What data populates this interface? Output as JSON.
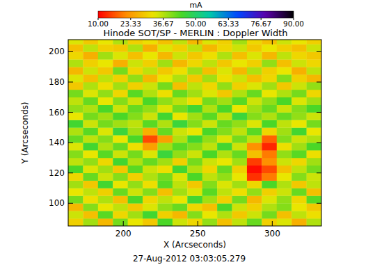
{
  "chart_data": {
    "type": "heatmap",
    "title": "Hinode SOT/SP - MERLIN : Doppler Width",
    "x_label": "X (Arcseconds)",
    "y_label": "Y (Arcseconds)",
    "annotations": [
      "27-Aug-2012 03:03:05.279"
    ],
    "xlim": [
      163,
      333
    ],
    "ylim": [
      85,
      208
    ],
    "xticks": [
      200,
      250,
      300
    ],
    "yticks": [
      100,
      120,
      140,
      160,
      180,
      200
    ],
    "colorbar": {
      "label": "mA",
      "range": [
        10,
        90
      ],
      "ticks": [
        {
          "value": 10,
          "label": "10.00"
        },
        {
          "value": 23.33,
          "label": "23.33"
        },
        {
          "value": 36.67,
          "label": "36.67"
        },
        {
          "value": 50,
          "label": "50.00"
        },
        {
          "value": 63.33,
          "label": "63.33"
        },
        {
          "value": 76.67,
          "label": "76.67"
        },
        {
          "value": 90,
          "label": "90.00"
        }
      ]
    },
    "x": [
      168,
      178,
      188,
      198,
      208,
      218,
      228,
      238,
      248,
      258,
      268,
      278,
      288,
      298,
      308,
      318,
      328
    ],
    "y": [
      87.5,
      92.5,
      97.5,
      102.5,
      107.5,
      112.5,
      117.5,
      122.5,
      127.5,
      132.5,
      137.5,
      142.5,
      147.5,
      152.5,
      157.5,
      162.5,
      167.5,
      172.5,
      177.5,
      182.5,
      187.5,
      192.5,
      197.5,
      202.5,
      207.5
    ],
    "values": [
      [
        30,
        38,
        27,
        41,
        33,
        29,
        44,
        35,
        31,
        39,
        28,
        36,
        42,
        30,
        34,
        26,
        37
      ],
      [
        35,
        28,
        43,
        31,
        38,
        45,
        30,
        27,
        40,
        33,
        37,
        29,
        35,
        41,
        28,
        36,
        32
      ],
      [
        27,
        40,
        33,
        36,
        29,
        34,
        39,
        42,
        31,
        28,
        44,
        35,
        30,
        37,
        40,
        33,
        29
      ],
      [
        41,
        32,
        37,
        28,
        44,
        31,
        36,
        33,
        45,
        38,
        30,
        41,
        27,
        34,
        39,
        31,
        43
      ],
      [
        33,
        36,
        30,
        42,
        35,
        40,
        28,
        38,
        34,
        43,
        36,
        32,
        39,
        30,
        35,
        42,
        28
      ],
      [
        38,
        29,
        45,
        33,
        39,
        32,
        43,
        36,
        29,
        40,
        34,
        38,
        31,
        44,
        37,
        29,
        36
      ],
      [
        31,
        42,
        35,
        40,
        30,
        37,
        41,
        34,
        44,
        36,
        39,
        33,
        14,
        20,
        33,
        40,
        35
      ],
      [
        44,
        34,
        38,
        29,
        43,
        35,
        32,
        45,
        37,
        31,
        42,
        30,
        11,
        16,
        28,
        36,
        41
      ],
      [
        36,
        39,
        31,
        45,
        37,
        42,
        38,
        30,
        41,
        35,
        33,
        38,
        15,
        22,
        35,
        31,
        38
      ],
      [
        40,
        33,
        43,
        35,
        41,
        34,
        46,
        39,
        35,
        44,
        37,
        42,
        28,
        20,
        39,
        43,
        32
      ],
      [
        34,
        45,
        37,
        42,
        32,
        24,
        38,
        43,
        40,
        36,
        45,
        35,
        22,
        13,
        32,
        38,
        44
      ],
      [
        42,
        36,
        40,
        33,
        44,
        16,
        24,
        37,
        45,
        39,
        34,
        41,
        36,
        18,
        40,
        35,
        37
      ],
      [
        37,
        43,
        34,
        46,
        38,
        26,
        42,
        35,
        33,
        44,
        40,
        36,
        43,
        31,
        38,
        45,
        33
      ],
      [
        45,
        35,
        41,
        38,
        36,
        43,
        37,
        46,
        40,
        35,
        42,
        39,
        34,
        44,
        36,
        33,
        41
      ],
      [
        33,
        41,
        38,
        44,
        40,
        35,
        45,
        33,
        38,
        43,
        36,
        46,
        40,
        37,
        42,
        39,
        35
      ],
      [
        39,
        37,
        44,
        35,
        42,
        39,
        34,
        41,
        45,
        37,
        44,
        33,
        38,
        42,
        35,
        40,
        44
      ],
      [
        36,
        42,
        33,
        40,
        35,
        44,
        39,
        36,
        32,
        41,
        38,
        43,
        35,
        39,
        44,
        34,
        38
      ],
      [
        41,
        34,
        39,
        31,
        43,
        37,
        32,
        42,
        38,
        34,
        29,
        37,
        42,
        33,
        37,
        41,
        31
      ],
      [
        29,
        37,
        32,
        38,
        30,
        35,
        41,
        28,
        36,
        31,
        39,
        30,
        34,
        38,
        29,
        35,
        39
      ],
      [
        34,
        28,
        36,
        30,
        39,
        27,
        33,
        37,
        29,
        38,
        32,
        35,
        28,
        31,
        40,
        30,
        27
      ],
      [
        27,
        35,
        29,
        41,
        31,
        36,
        29,
        32,
        38,
        28,
        34,
        27,
        37,
        30,
        33,
        26,
        36
      ],
      [
        37,
        30,
        33,
        26,
        35,
        30,
        38,
        27,
        31,
        36,
        29,
        33,
        30,
        39,
        28,
        35,
        31
      ],
      [
        31,
        26,
        38,
        34,
        28,
        33,
        27,
        35,
        29,
        32,
        37,
        28,
        34,
        27,
        36,
        31,
        29
      ],
      [
        28,
        36,
        30,
        29,
        37,
        26,
        34,
        30,
        36,
        27,
        31,
        35,
        29,
        33,
        30,
        28,
        35
      ],
      [
        34,
        29,
        33,
        37,
        30,
        32,
        28,
        36,
        27,
        34,
        30,
        38,
        31,
        28,
        35,
        33,
        30
      ]
    ]
  }
}
